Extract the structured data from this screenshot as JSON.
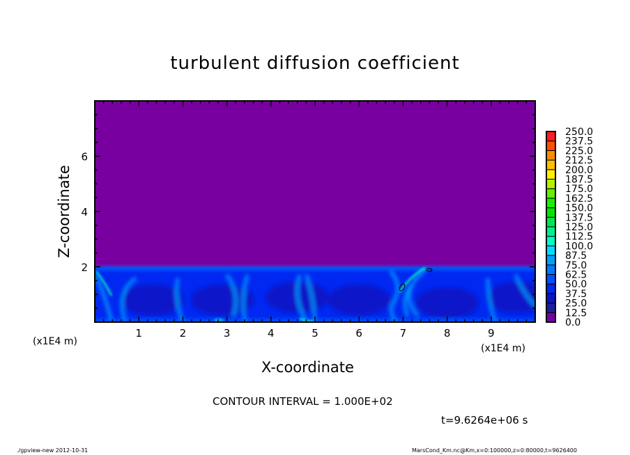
{
  "chart_data": {
    "type": "heatmap",
    "title": "turbulent diffusion coefficient",
    "xlabel": "X-coordinate",
    "ylabel": "Z-coordinate",
    "x_unit": "(x1E4 m)",
    "y_unit": "(x1E4 m)",
    "xlim": [
      0,
      10
    ],
    "ylim": [
      0,
      8
    ],
    "x_ticks": [
      1,
      2,
      3,
      4,
      5,
      6,
      7,
      8,
      9
    ],
    "y_ticks": [
      2,
      4,
      6
    ],
    "colorbar": {
      "levels": [
        "0.0",
        "12.5",
        "25.0",
        "37.5",
        "50.0",
        "62.5",
        "75.0",
        "87.5",
        "100.0",
        "112.5",
        "125.0",
        "137.5",
        "150.0",
        "162.5",
        "175.0",
        "187.5",
        "200.0",
        "212.5",
        "225.0",
        "237.5",
        "250.0"
      ],
      "colors": [
        "#7800a0",
        "#1e1ea0",
        "#0a14c8",
        "#0028f0",
        "#0050ff",
        "#0078ff",
        "#00a0ff",
        "#00dcff",
        "#00ffc8",
        "#00f08c",
        "#00e650",
        "#00e600",
        "#14f000",
        "#64f000",
        "#b4f000",
        "#fff000",
        "#ffbe00",
        "#ff8c00",
        "#ff5000",
        "#ff1e1e",
        "#ff7878"
      ]
    },
    "field_description_values": {
      "upper_layer_value": 0.0,
      "boundary_layer_top_z": 2.0,
      "boundary_layer_range": [
        12.5,
        100.0
      ]
    },
    "contour_interval": "CONTOUR INTERVAL = 1.000E+02",
    "time": "t=9.6264e+06 s"
  },
  "footer": {
    "left": "./gpview-new  2012-10-31",
    "right": "MarsCond_Km.nc@Km,x=0:100000,z=0:80000,t=9626400"
  }
}
